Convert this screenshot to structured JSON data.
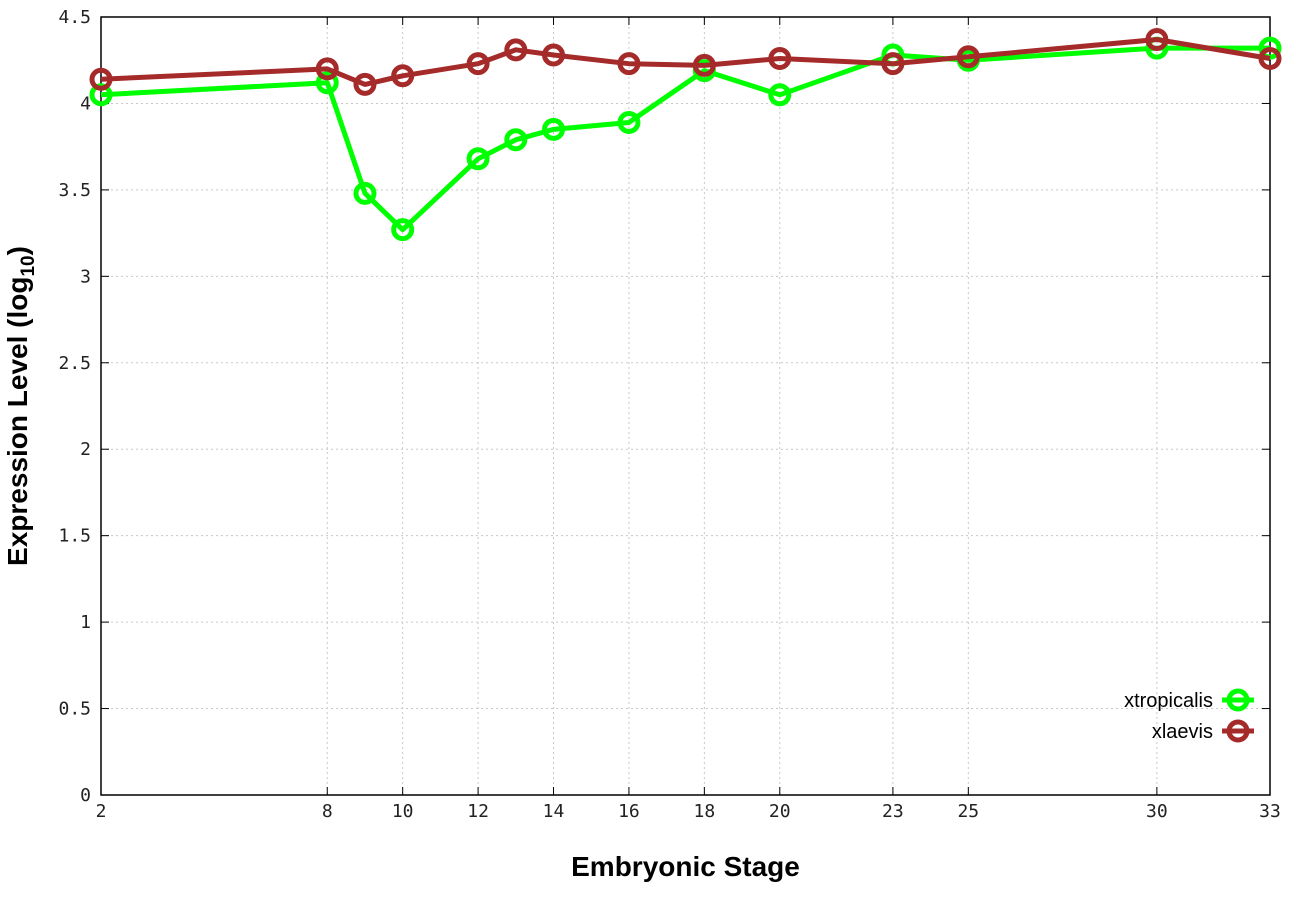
{
  "chart_data": {
    "type": "line",
    "xlabel": "Embryonic Stage",
    "ylabel_main": "Expression Level (log",
    "ylabel_sub": "10",
    "ylabel_close": ")",
    "xlim": [
      2,
      33
    ],
    "ylim": [
      0,
      4.5
    ],
    "grid": true,
    "legend_position": "bottom-right",
    "x_ticks": [
      2,
      8,
      10,
      12,
      14,
      16,
      18,
      20,
      23,
      25,
      30,
      33
    ],
    "y_ticks": [
      0,
      0.5,
      1,
      1.5,
      2,
      2.5,
      3,
      3.5,
      4,
      4.5
    ],
    "y_tick_labels": [
      "0",
      "0.5",
      "1",
      "1.5",
      "2",
      "2.5",
      "3",
      "3.5",
      "4",
      "4.5"
    ],
    "series": [
      {
        "name": "xtropicalis",
        "color": "#00ff00",
        "x": [
          2,
          8,
          9,
          10,
          12,
          13,
          14,
          16,
          18,
          20,
          23,
          25,
          30,
          33
        ],
        "y": [
          4.05,
          4.12,
          3.48,
          3.27,
          3.68,
          3.79,
          3.85,
          3.89,
          4.19,
          4.05,
          4.28,
          4.25,
          4.32,
          4.32
        ]
      },
      {
        "name": "xlaevis",
        "color": "#a52a2a",
        "x": [
          2,
          8,
          9,
          10,
          12,
          13,
          14,
          16,
          18,
          20,
          23,
          25,
          30,
          33
        ],
        "y": [
          4.14,
          4.2,
          4.11,
          4.16,
          4.23,
          4.31,
          4.28,
          4.23,
          4.22,
          4.26,
          4.23,
          4.27,
          4.37,
          4.26
        ]
      }
    ]
  }
}
